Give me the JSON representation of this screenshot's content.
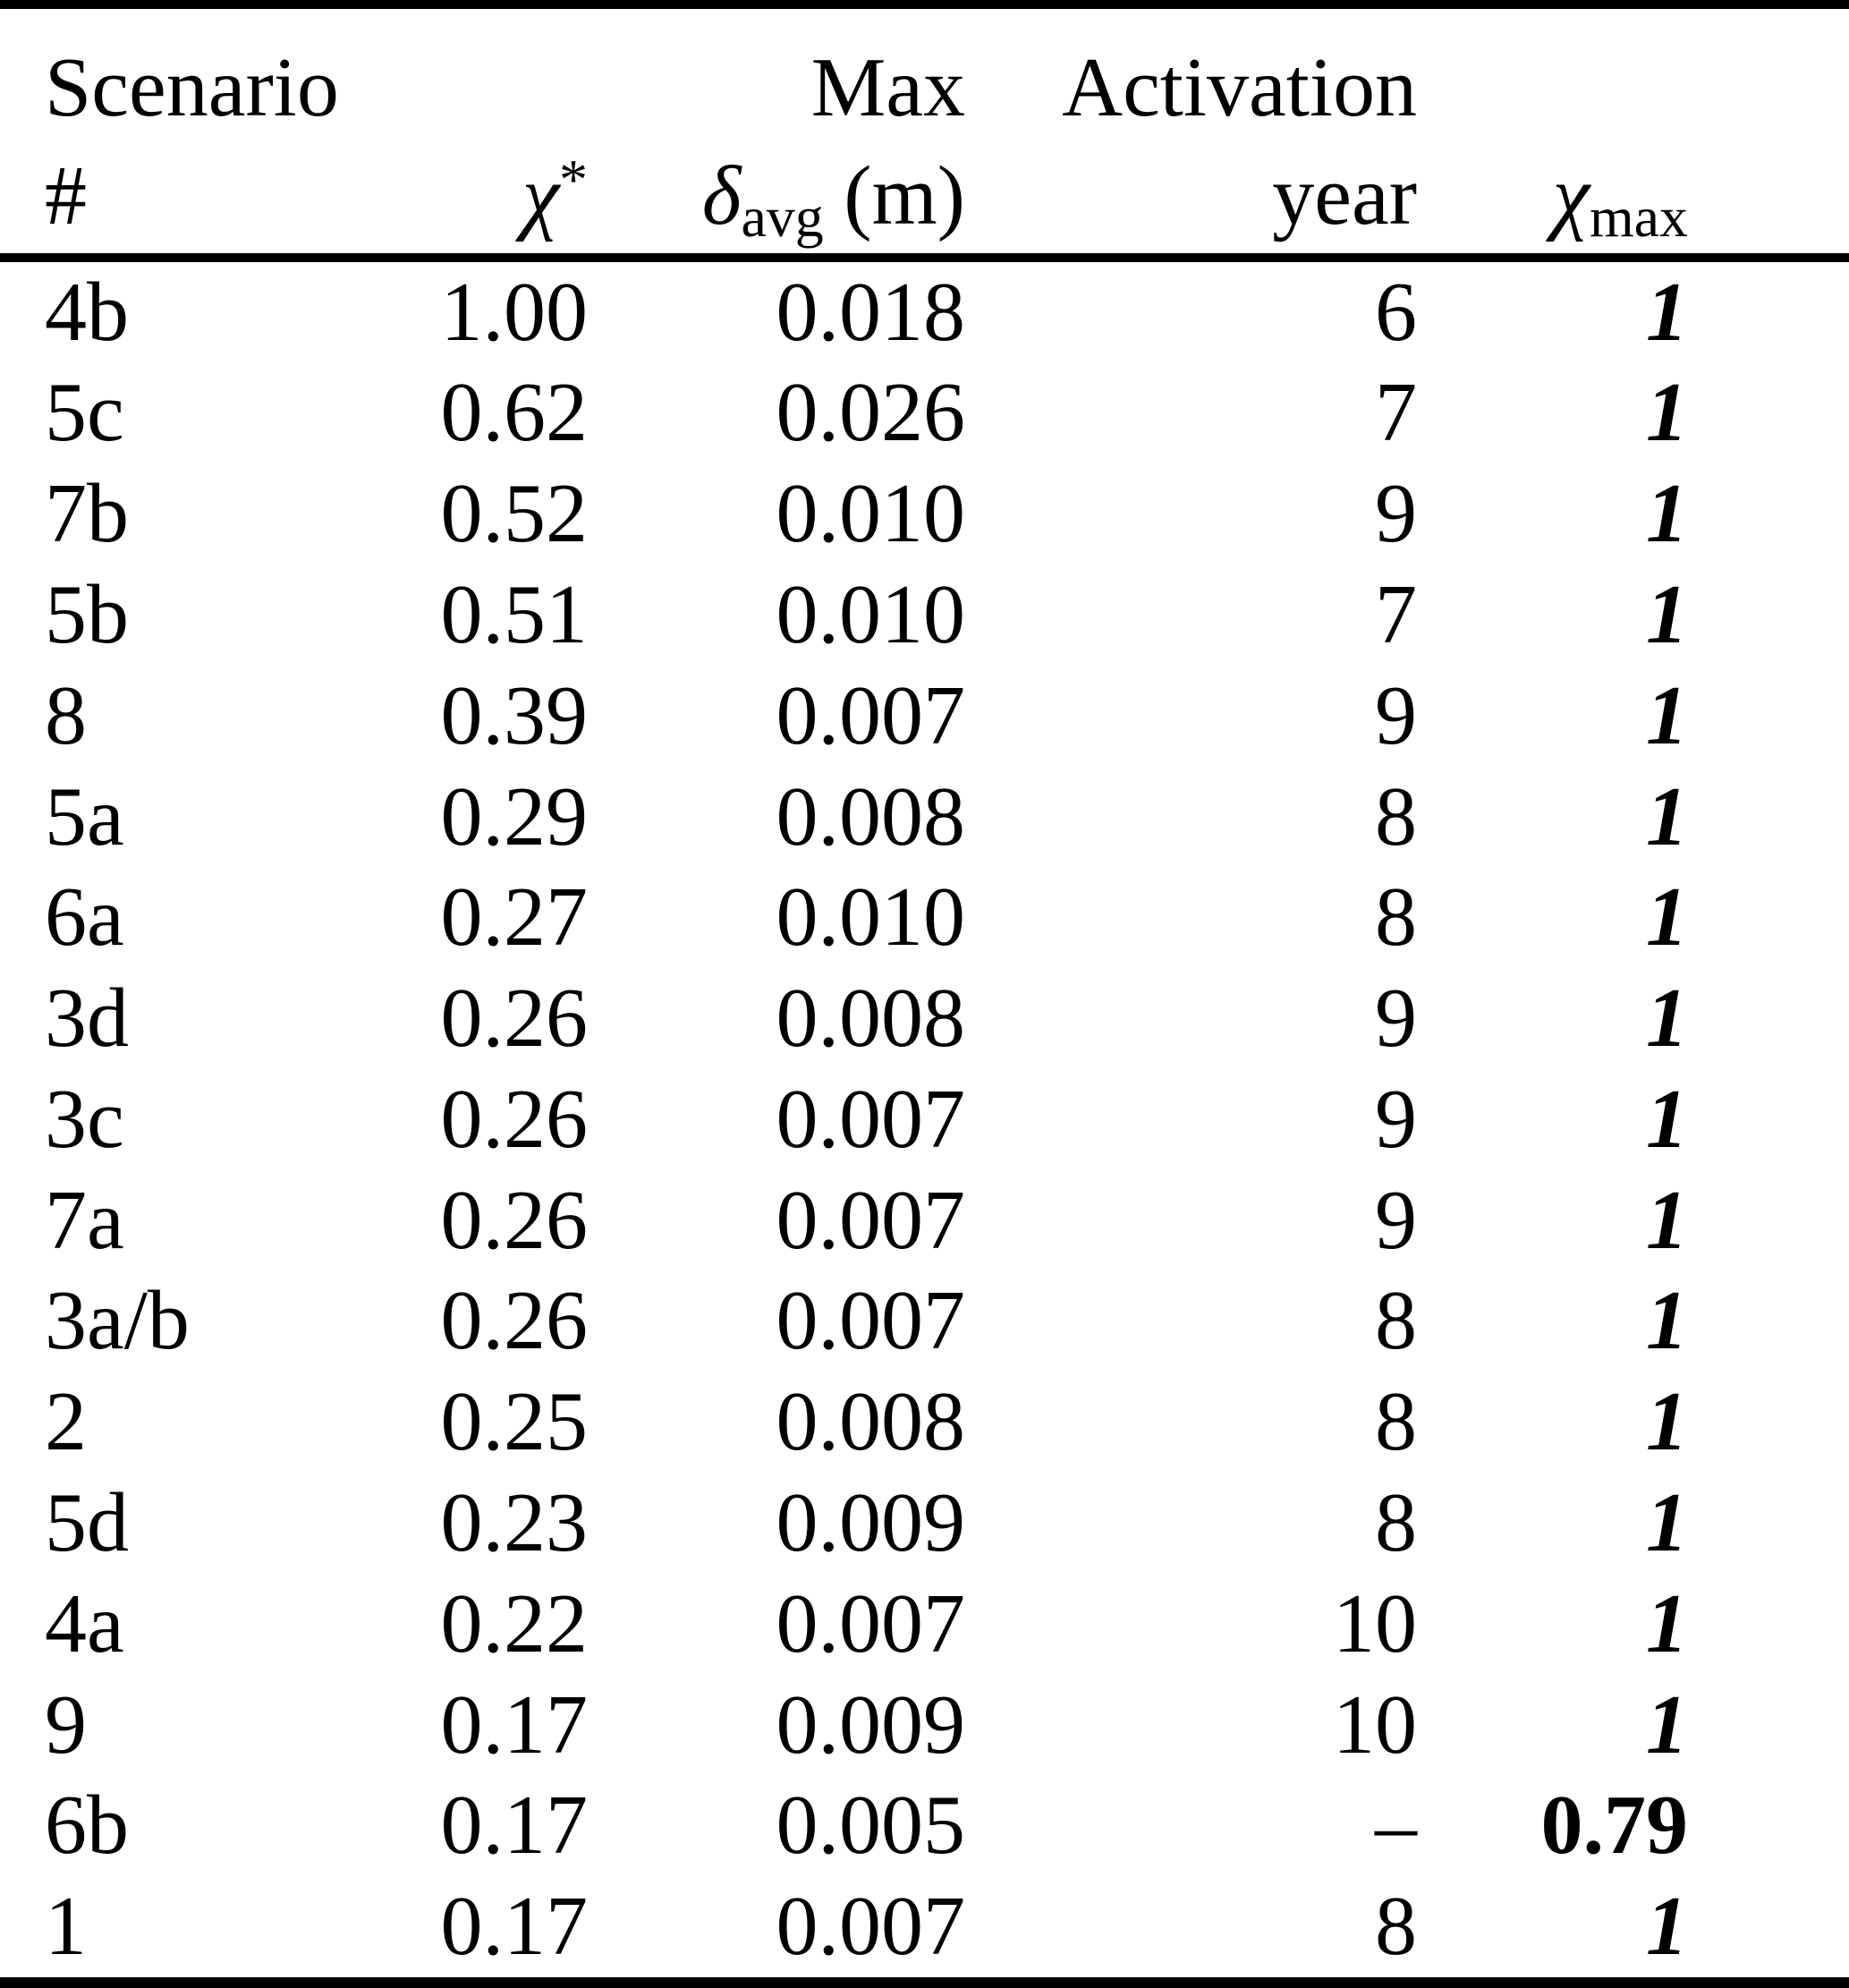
{
  "colors": {
    "background": "#ffffff",
    "text": "#000000",
    "rule": "#000000"
  },
  "table": {
    "header": {
      "scenario_line1": "Scenario",
      "scenario_line2": "#",
      "chi": "χ",
      "chi_star_sup": "*",
      "max_line1": "Max",
      "delta": "δ",
      "delta_sub": "avg",
      "delta_unit": "(m)",
      "activation_line1": "Activation",
      "activation_line2": "year",
      "chi_max_base": "χ",
      "chi_max_sub": "max"
    },
    "rows": [
      {
        "scenario": "4b",
        "chi_star": "1.00",
        "max_delta_avg": "0.018",
        "activation_year": "6",
        "chi_max": "1",
        "chi_max_style": "bold-italic"
      },
      {
        "scenario": "5c",
        "chi_star": "0.62",
        "max_delta_avg": "0.026",
        "activation_year": "7",
        "chi_max": "1",
        "chi_max_style": "bold-italic"
      },
      {
        "scenario": "7b",
        "chi_star": "0.52",
        "max_delta_avg": "0.010",
        "activation_year": "9",
        "chi_max": "1",
        "chi_max_style": "bold-italic"
      },
      {
        "scenario": "5b",
        "chi_star": "0.51",
        "max_delta_avg": "0.010",
        "activation_year": "7",
        "chi_max": "1",
        "chi_max_style": "bold-italic"
      },
      {
        "scenario": "8",
        "chi_star": "0.39",
        "max_delta_avg": "0.007",
        "activation_year": "9",
        "chi_max": "1",
        "chi_max_style": "bold-italic"
      },
      {
        "scenario": "5a",
        "chi_star": "0.29",
        "max_delta_avg": "0.008",
        "activation_year": "8",
        "chi_max": "1",
        "chi_max_style": "bold-italic"
      },
      {
        "scenario": "6a",
        "chi_star": "0.27",
        "max_delta_avg": "0.010",
        "activation_year": "8",
        "chi_max": "1",
        "chi_max_style": "bold-italic"
      },
      {
        "scenario": "3d",
        "chi_star": "0.26",
        "max_delta_avg": "0.008",
        "activation_year": "9",
        "chi_max": "1",
        "chi_max_style": "bold-italic"
      },
      {
        "scenario": "3c",
        "chi_star": "0.26",
        "max_delta_avg": "0.007",
        "activation_year": "9",
        "chi_max": "1",
        "chi_max_style": "bold-italic"
      },
      {
        "scenario": "7a",
        "chi_star": "0.26",
        "max_delta_avg": "0.007",
        "activation_year": "9",
        "chi_max": "1",
        "chi_max_style": "bold-italic"
      },
      {
        "scenario": "3a/b",
        "chi_star": "0.26",
        "max_delta_avg": "0.007",
        "activation_year": "8",
        "chi_max": "1",
        "chi_max_style": "bold-italic"
      },
      {
        "scenario": "2",
        "chi_star": "0.25",
        "max_delta_avg": "0.008",
        "activation_year": "8",
        "chi_max": "1",
        "chi_max_style": "bold-italic"
      },
      {
        "scenario": "5d",
        "chi_star": "0.23",
        "max_delta_avg": "0.009",
        "activation_year": "8",
        "chi_max": "1",
        "chi_max_style": "bold-italic"
      },
      {
        "scenario": "4a",
        "chi_star": "0.22",
        "max_delta_avg": "0.007",
        "activation_year": "10",
        "chi_max": "1",
        "chi_max_style": "bold-italic"
      },
      {
        "scenario": "9",
        "chi_star": "0.17",
        "max_delta_avg": "0.009",
        "activation_year": "10",
        "chi_max": "1",
        "chi_max_style": "bold-italic"
      },
      {
        "scenario": "6b",
        "chi_star": "0.17",
        "max_delta_avg": "0.005",
        "activation_year": "–",
        "chi_max": "0.79",
        "chi_max_style": "bold-upright"
      },
      {
        "scenario": "1",
        "chi_star": "0.17",
        "max_delta_avg": "0.007",
        "activation_year": "8",
        "chi_max": "1",
        "chi_max_style": "bold-italic"
      }
    ]
  }
}
